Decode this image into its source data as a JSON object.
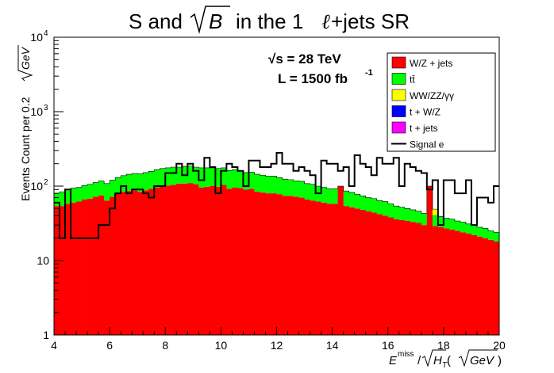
{
  "chart_data": {
    "type": "histogram-stacked",
    "title": {
      "part1": "S and ",
      "sqrt_arg": "B",
      "part2": " in the 1",
      "ell": "ℓ",
      "part3": "+jets SR"
    },
    "annotations": {
      "energy_label": "√s = 28 TeV",
      "lumi_label": "L = 1500 fb",
      "lumi_exp": "-1"
    },
    "ylabel": {
      "prefix": "Events Count per 0.2 ",
      "unit": "GeV"
    },
    "xlabel": {
      "e": "E",
      "e_sup": "miss",
      "slash": "/",
      "h": "H",
      "h_sub": "T",
      "open": " (",
      "unit": "GeV",
      "close": ")"
    },
    "x_edges_start": 4.0,
    "bin_width": 0.2,
    "xlim": [
      4,
      20
    ],
    "ylim": [
      1,
      10000
    ],
    "log_y": true,
    "x_ticks": [
      "4",
      "6",
      "8",
      "10",
      "12",
      "14",
      "16",
      "18",
      "20"
    ],
    "x_tick_values": [
      4,
      6,
      8,
      10,
      12,
      14,
      16,
      18,
      20
    ],
    "y_ticks": [
      "1",
      "10",
      "10",
      "10",
      "10"
    ],
    "y_tick_exps": [
      "",
      "",
      "2",
      "3",
      "4"
    ],
    "y_tick_values": [
      1,
      10,
      100,
      1000,
      10000
    ],
    "legend": [
      {
        "label": "W/Z + jets",
        "color": "#ff0000",
        "kind": "box"
      },
      {
        "label": "tt̄",
        "color": "#00ff00",
        "kind": "box"
      },
      {
        "label": "WW/ZZ/γγ",
        "color": "#ffff00",
        "kind": "box"
      },
      {
        "label": "t + W/Z",
        "color": "#0000ff",
        "kind": "box"
      },
      {
        "label": "t + jets",
        "color": "#ff00ff",
        "kind": "box"
      },
      {
        "label": "Signal e",
        "color": "#000000",
        "kind": "line"
      }
    ],
    "series": [
      {
        "name": "W/Z + jets",
        "color": "#ff0000",
        "values": [
          54,
          54,
          58,
          60,
          62,
          66,
          68,
          72,
          75,
          64,
          72,
          80,
          84,
          86,
          88,
          84,
          88,
          92,
          96,
          100,
          102,
          104,
          108,
          108,
          110,
          106,
          96,
          98,
          100,
          98,
          104,
          92,
          96,
          94,
          90,
          92,
          84,
          82,
          80,
          80,
          78,
          74,
          74,
          72,
          70,
          66,
          64,
          62,
          60,
          58,
          58,
          100,
          54,
          52,
          50,
          48,
          46,
          44,
          42,
          40,
          38,
          36,
          35,
          34,
          33,
          32,
          30,
          100,
          29,
          28,
          27,
          26,
          25,
          24,
          23,
          22,
          21,
          20,
          19,
          18
        ]
      },
      {
        "name": "tt̄",
        "color": "#00ff00",
        "values": [
          26,
          30,
          32,
          34,
          34,
          36,
          38,
          40,
          42,
          44,
          48,
          50,
          54,
          58,
          60,
          62,
          64,
          66,
          70,
          72,
          74,
          76,
          72,
          76,
          76,
          74,
          80,
          78,
          76,
          74,
          72,
          70,
          70,
          66,
          62,
          62,
          60,
          58,
          56,
          56,
          52,
          50,
          48,
          46,
          46,
          42,
          42,
          38,
          36,
          34,
          34,
          0,
          32,
          30,
          28,
          26,
          24,
          24,
          22,
          22,
          20,
          18,
          17,
          16,
          15,
          14,
          13,
          0,
          12,
          11,
          10,
          10,
          9,
          9,
          8,
          8,
          7,
          7,
          6,
          6
        ]
      },
      {
        "name": "WW/ZZ/γγ",
        "color": "#ffff00",
        "values": [
          0,
          0,
          0,
          0,
          0,
          0,
          0,
          0,
          0,
          0,
          0,
          0,
          0,
          0,
          0,
          0,
          0,
          0,
          0,
          0,
          0,
          0,
          0,
          0,
          0,
          0,
          0,
          0,
          0,
          0,
          0,
          0,
          0,
          0,
          0,
          0,
          0,
          0,
          0,
          0,
          0,
          0,
          0,
          0,
          0,
          0,
          0,
          0,
          0,
          0,
          0,
          0,
          0,
          0,
          0,
          0,
          0,
          0,
          0,
          0,
          0,
          0,
          0,
          0,
          0,
          0,
          0,
          0,
          8,
          0,
          0,
          0,
          0,
          0,
          0,
          0,
          0,
          0,
          0,
          0
        ]
      },
      {
        "name": "Signal e",
        "color": "#000000",
        "values": [
          60,
          20,
          90,
          20,
          20,
          20,
          20,
          20,
          30,
          30,
          50,
          80,
          100,
          80,
          90,
          90,
          80,
          70,
          100,
          100,
          150,
          150,
          200,
          140,
          200,
          160,
          120,
          240,
          180,
          80,
          160,
          200,
          180,
          160,
          100,
          220,
          220,
          180,
          180,
          200,
          280,
          200,
          200,
          160,
          180,
          160,
          140,
          80,
          220,
          200,
          200,
          160,
          180,
          100,
          260,
          200,
          180,
          140,
          240,
          200,
          200,
          240,
          100,
          200,
          180,
          160,
          150,
          90,
          120,
          30,
          120,
          120,
          80,
          80,
          120,
          30,
          70,
          70,
          60,
          100
        ]
      }
    ]
  }
}
